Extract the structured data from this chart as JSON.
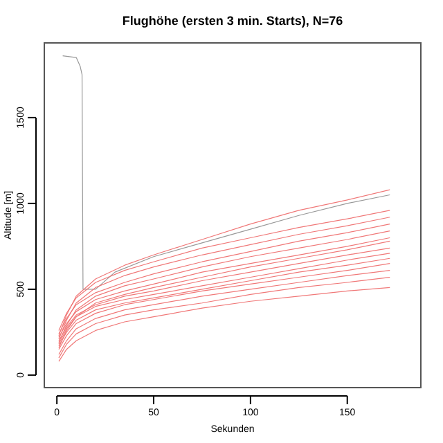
{
  "chart_data": {
    "type": "line",
    "title": "Flughöhe (ersten 3 min. Starts), N=76",
    "xlabel": "Sekunden",
    "ylabel": "Altitude [m]",
    "xlim": [
      -6.5,
      188
    ],
    "ylim": [
      -73,
      1935
    ],
    "xticks": [
      0,
      50,
      100,
      150
    ],
    "yticks": [
      0,
      500,
      1000,
      1500
    ],
    "grid": false,
    "line_style": "solid",
    "marker": "none",
    "series": [
      {
        "color": "#999999",
        "x": [
          3,
          10,
          12,
          13,
          13.5,
          20,
          30,
          50,
          75,
          100,
          125,
          150,
          172
        ],
        "values": [
          1860,
          1850,
          1800,
          1750,
          500,
          500,
          600,
          690,
          770,
          850,
          930,
          1000,
          1050
        ]
      },
      {
        "color": "#f07878",
        "x": [
          1,
          5,
          10,
          20,
          35,
          50,
          75,
          100,
          125,
          150,
          172
        ],
        "values": [
          80,
          150,
          200,
          260,
          310,
          340,
          390,
          430,
          460,
          490,
          510
        ]
      },
      {
        "color": "#f07878",
        "x": [
          1,
          5,
          10,
          20,
          35,
          50,
          75,
          100,
          125,
          150,
          172
        ],
        "values": [
          100,
          180,
          240,
          300,
          350,
          380,
          420,
          470,
          510,
          540,
          570
        ]
      },
      {
        "color": "#f07878",
        "x": [
          1,
          5,
          10,
          20,
          35,
          50,
          75,
          100,
          125,
          150,
          172
        ],
        "values": [
          120,
          200,
          270,
          330,
          380,
          410,
          460,
          500,
          540,
          580,
          610
        ]
      },
      {
        "color": "#f07878",
        "x": [
          1,
          5,
          10,
          20,
          35,
          50,
          75,
          100,
          125,
          150,
          172
        ],
        "values": [
          150,
          230,
          300,
          360,
          410,
          440,
          490,
          530,
          570,
          610,
          650
        ]
      },
      {
        "color": "#f07878",
        "x": [
          1,
          5,
          10,
          20,
          35,
          50,
          75,
          100,
          125,
          150,
          172
        ],
        "values": [
          170,
          250,
          320,
          380,
          420,
          450,
          500,
          550,
          600,
          640,
          680
        ]
      },
      {
        "color": "#f07878",
        "x": [
          1,
          5,
          10,
          20,
          35,
          50,
          75,
          100,
          125,
          150,
          172
        ],
        "values": [
          180,
          270,
          340,
          400,
          440,
          470,
          520,
          570,
          620,
          670,
          710
        ]
      },
      {
        "color": "#f07878",
        "x": [
          1,
          5,
          10,
          20,
          35,
          50,
          75,
          100,
          125,
          150,
          172
        ],
        "values": [
          200,
          280,
          350,
          410,
          460,
          490,
          550,
          600,
          650,
          700,
          740
        ]
      },
      {
        "color": "#f07878",
        "x": [
          1,
          5,
          10,
          20,
          35,
          50,
          75,
          100,
          125,
          150,
          172
        ],
        "values": [
          160,
          260,
          340,
          420,
          470,
          510,
          570,
          630,
          680,
          730,
          780
        ]
      },
      {
        "color": "#f07878",
        "x": [
          1,
          5,
          10,
          20,
          35,
          50,
          75,
          100,
          125,
          150,
          172
        ],
        "values": [
          220,
          300,
          370,
          440,
          490,
          530,
          600,
          650,
          700,
          750,
          800
        ]
      },
      {
        "color": "#f07878",
        "x": [
          1,
          5,
          10,
          20,
          35,
          50,
          75,
          100,
          125,
          150,
          172
        ],
        "values": [
          190,
          290,
          380,
          460,
          520,
          560,
          630,
          690,
          740,
          790,
          840
        ]
      },
      {
        "color": "#f07878",
        "x": [
          1,
          5,
          10,
          20,
          35,
          50,
          75,
          100,
          125,
          150,
          172
        ],
        "values": [
          240,
          330,
          410,
          480,
          540,
          590,
          660,
          720,
          780,
          830,
          880
        ]
      },
      {
        "color": "#f07878",
        "x": [
          1,
          5,
          10,
          20,
          35,
          50,
          75,
          100,
          125,
          150,
          172
        ],
        "values": [
          210,
          320,
          420,
          510,
          580,
          630,
          700,
          760,
          820,
          870,
          920
        ]
      },
      {
        "color": "#f07878",
        "x": [
          1,
          5,
          10,
          20,
          35,
          50,
          75,
          100,
          125,
          150,
          172
        ],
        "values": [
          260,
          360,
          450,
          540,
          610,
          660,
          740,
          800,
          860,
          910,
          960
        ]
      },
      {
        "color": "#f07878",
        "x": [
          1,
          5,
          10,
          20,
          35,
          50,
          75,
          100,
          125,
          150,
          172
        ],
        "values": [
          230,
          350,
          460,
          560,
          640,
          700,
          790,
          880,
          960,
          1020,
          1080
        ]
      }
    ]
  }
}
